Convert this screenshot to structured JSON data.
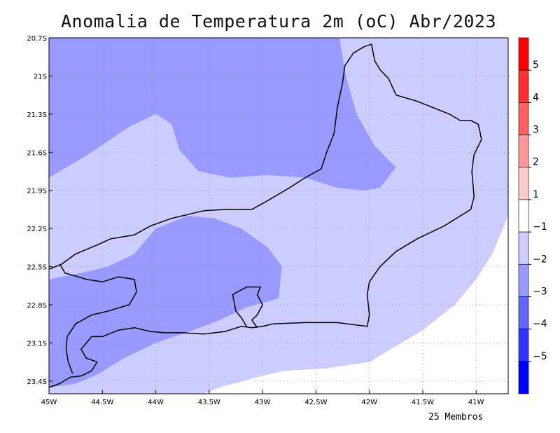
{
  "title": "Anomalia de Temperatura 2m (oC) Abr/2023",
  "footer": "25 Membros",
  "map": {
    "lon_range": [
      -45,
      -40.7
    ],
    "lat_range": [
      -23.5,
      -20.7
    ],
    "lon_ticks": [
      {
        "value": -45,
        "label": "45W"
      },
      {
        "value": -44.5,
        "label": "44.5W"
      },
      {
        "value": -44,
        "label": "44W"
      },
      {
        "value": -43.5,
        "label": "43.5W"
      },
      {
        "value": -43,
        "label": "43W"
      },
      {
        "value": -42.5,
        "label": "42.5W"
      },
      {
        "value": -42,
        "label": "42W"
      },
      {
        "value": -41.5,
        "label": "41.5W"
      },
      {
        "value": -41,
        "label": "41W"
      }
    ],
    "lat_ticks": [
      {
        "value": -20.7,
        "label": "20.7S"
      },
      {
        "value": -21,
        "label": "21S"
      },
      {
        "value": -21.3,
        "label": "21.3S"
      },
      {
        "value": -21.6,
        "label": "21.6S"
      },
      {
        "value": -21.9,
        "label": "21.9S"
      },
      {
        "value": -22.2,
        "label": "22.2S"
      },
      {
        "value": -22.5,
        "label": "22.5S"
      },
      {
        "value": -22.8,
        "label": "22.8S"
      },
      {
        "value": -23.1,
        "label": "23.1S"
      },
      {
        "value": -23.4,
        "label": "23.4S"
      }
    ],
    "regions": [
      {
        "name": "north-band-anomaly",
        "color": "#9999ff",
        "points": [
          [
            -45,
            -20.7
          ],
          [
            -42.28,
            -20.7
          ],
          [
            -42.22,
            -21.0
          ],
          [
            -42.12,
            -21.3
          ],
          [
            -41.95,
            -21.55
          ],
          [
            -41.75,
            -21.72
          ],
          [
            -41.9,
            -21.88
          ],
          [
            -42.05,
            -21.9
          ],
          [
            -42.3,
            -21.88
          ],
          [
            -42.6,
            -21.8
          ],
          [
            -42.95,
            -21.78
          ],
          [
            -43.3,
            -21.8
          ],
          [
            -43.6,
            -21.75
          ],
          [
            -43.78,
            -21.58
          ],
          [
            -43.85,
            -21.38
          ],
          [
            -44.0,
            -21.3
          ],
          [
            -44.25,
            -21.4
          ],
          [
            -44.6,
            -21.6
          ],
          [
            -45,
            -21.8
          ]
        ]
      },
      {
        "name": "southwest-band-anomaly",
        "color": "#9999ff",
        "points": [
          [
            -45,
            -22.6
          ],
          [
            -44.7,
            -22.55
          ],
          [
            -44.45,
            -22.5
          ],
          [
            -44.2,
            -22.4
          ],
          [
            -44.0,
            -22.2
          ],
          [
            -43.7,
            -22.1
          ],
          [
            -43.45,
            -22.12
          ],
          [
            -43.2,
            -22.2
          ],
          [
            -42.95,
            -22.35
          ],
          [
            -42.82,
            -22.5
          ],
          [
            -42.85,
            -22.75
          ],
          [
            -43.15,
            -22.82
          ],
          [
            -43.4,
            -22.92
          ],
          [
            -43.65,
            -23.0
          ],
          [
            -44.0,
            -23.1
          ],
          [
            -44.3,
            -23.22
          ],
          [
            -44.55,
            -23.35
          ],
          [
            -44.75,
            -23.42
          ],
          [
            -45,
            -23.45
          ]
        ]
      },
      {
        "name": "southeast-band-anomaly",
        "color": "#ffffff",
        "points": [
          [
            -40.7,
            -22.1
          ],
          [
            -40.85,
            -22.4
          ],
          [
            -41.0,
            -22.6
          ],
          [
            -41.2,
            -22.8
          ],
          [
            -41.5,
            -23.0
          ],
          [
            -41.8,
            -23.15
          ],
          [
            -42.0,
            -23.25
          ],
          [
            -42.4,
            -23.3
          ],
          [
            -42.8,
            -23.32
          ],
          [
            -43.1,
            -23.38
          ],
          [
            -43.4,
            -23.45
          ],
          [
            -43.55,
            -23.5
          ],
          [
            -40.7,
            -23.5
          ]
        ]
      }
    ],
    "state_border": [
      [
        -45,
        -22.52
      ],
      [
        -44.88,
        -22.48
      ],
      [
        -44.75,
        -22.4
      ],
      [
        -44.55,
        -22.33
      ],
      [
        -44.42,
        -22.28
      ],
      [
        -44.2,
        -22.25
      ],
      [
        -44.05,
        -22.18
      ],
      [
        -43.85,
        -22.12
      ],
      [
        -43.7,
        -22.09
      ],
      [
        -43.55,
        -22.06
      ],
      [
        -43.35,
        -22.05
      ],
      [
        -43.1,
        -22.05
      ],
      [
        -42.95,
        -21.98
      ],
      [
        -42.75,
        -21.88
      ],
      [
        -42.6,
        -21.8
      ],
      [
        -42.45,
        -21.73
      ],
      [
        -42.4,
        -21.6
      ],
      [
        -42.33,
        -21.45
      ],
      [
        -42.3,
        -21.25
      ],
      [
        -42.25,
        -21.05
      ],
      [
        -42.23,
        -20.92
      ],
      [
        -42.15,
        -20.82
      ],
      [
        -42.05,
        -20.77
      ],
      [
        -41.98,
        -20.75
      ],
      [
        -41.95,
        -20.88
      ],
      [
        -41.9,
        -20.95
      ],
      [
        -41.82,
        -21.02
      ],
      [
        -41.75,
        -21.15
      ],
      [
        -41.55,
        -21.2
      ],
      [
        -41.4,
        -21.25
      ],
      [
        -41.25,
        -21.3
      ],
      [
        -41.15,
        -21.35
      ],
      [
        -41.05,
        -21.35
      ],
      [
        -40.98,
        -21.38
      ],
      [
        -40.95,
        -21.5
      ]
    ],
    "coast": [
      [
        -40.95,
        -21.5
      ],
      [
        -41.02,
        -21.62
      ],
      [
        -41.04,
        -21.75
      ],
      [
        -41.02,
        -21.95
      ],
      [
        -41.05,
        -22.05
      ],
      [
        -41.3,
        -22.18
      ],
      [
        -41.55,
        -22.28
      ],
      [
        -41.75,
        -22.38
      ],
      [
        -41.9,
        -22.5
      ],
      [
        -42.0,
        -22.62
      ],
      [
        -42.02,
        -22.72
      ],
      [
        -42.0,
        -22.88
      ],
      [
        -42.02,
        -22.97
      ],
      [
        -42.3,
        -22.94
      ],
      [
        -42.6,
        -22.94
      ],
      [
        -42.9,
        -22.95
      ],
      [
        -43.0,
        -22.97
      ],
      [
        -43.1,
        -22.98
      ],
      [
        -43.2,
        -22.97
      ],
      [
        -43.35,
        -23.01
      ],
      [
        -43.55,
        -23.03
      ],
      [
        -43.75,
        -23.02
      ],
      [
        -43.92,
        -23.02
      ],
      [
        -44.05,
        -23.01
      ],
      [
        -44.2,
        -22.98
      ],
      [
        -44.35,
        -23.0
      ],
      [
        -44.5,
        -23.05
      ],
      [
        -44.6,
        -23.05
      ],
      [
        -44.7,
        -23.15
      ],
      [
        -44.65,
        -23.22
      ],
      [
        -44.55,
        -23.25
      ],
      [
        -44.6,
        -23.32
      ],
      [
        -44.7,
        -23.36
      ],
      [
        -44.8,
        -23.37
      ],
      [
        -44.9,
        -23.42
      ],
      [
        -45,
        -23.45
      ]
    ],
    "minas_sp_border": [
      [
        -44.9,
        -22.48
      ],
      [
        -44.85,
        -22.55
      ],
      [
        -44.65,
        -22.6
      ],
      [
        -44.5,
        -22.62
      ],
      [
        -44.35,
        -22.58
      ],
      [
        -44.2,
        -22.6
      ],
      [
        -44.18,
        -22.7
      ],
      [
        -44.25,
        -22.8
      ],
      [
        -44.45,
        -22.85
      ],
      [
        -44.6,
        -22.88
      ],
      [
        -44.75,
        -22.95
      ],
      [
        -44.83,
        -23.05
      ],
      [
        -44.84,
        -23.15
      ],
      [
        -44.82,
        -23.25
      ],
      [
        -44.78,
        -23.34
      ]
    ],
    "bay_outline": [
      [
        -43.05,
        -22.98
      ],
      [
        -43.1,
        -22.92
      ],
      [
        -43.05,
        -22.88
      ],
      [
        -43.0,
        -22.8
      ],
      [
        -43.05,
        -22.72
      ],
      [
        -43.02,
        -22.66
      ],
      [
        -43.15,
        -22.66
      ],
      [
        -43.28,
        -22.72
      ],
      [
        -43.25,
        -22.85
      ],
      [
        -43.2,
        -22.9
      ],
      [
        -43.15,
        -22.97
      ]
    ]
  },
  "colorbar": {
    "colors": [
      "#ff0000",
      "#ff3030",
      "#ff6060",
      "#ff9999",
      "#ffcccc",
      "#ffffff",
      "#ccccff",
      "#9999ff",
      "#6464ff",
      "#3232ff",
      "#0000ff"
    ],
    "labels": [
      "5",
      "4",
      "3",
      "2",
      "1",
      "−1",
      "−2",
      "−3",
      "−4",
      "−5"
    ]
  }
}
